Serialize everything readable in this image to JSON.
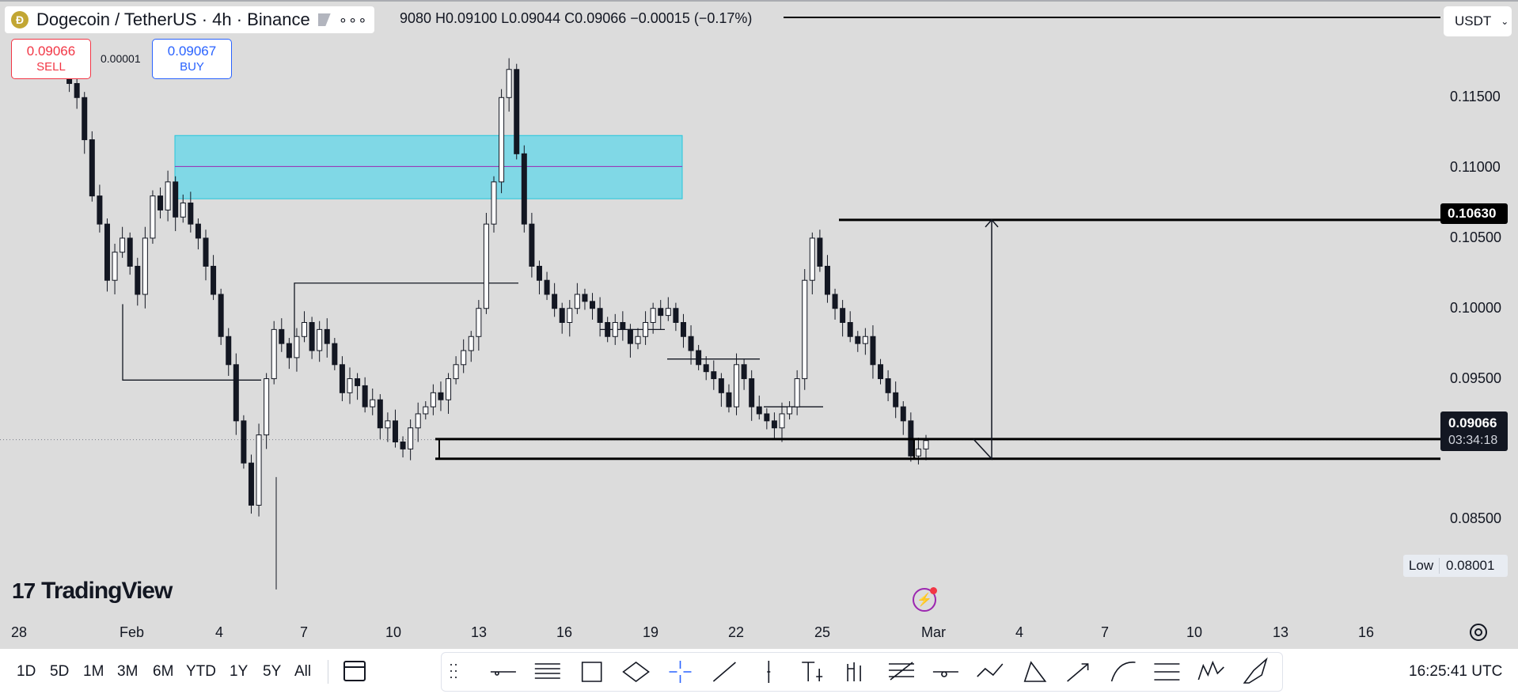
{
  "header": {
    "title": "Dogecoin / TetherUS · 4h · Binance",
    "coin_icon": "dogecoin-icon",
    "ohlc_text": "9080  H0.09100  L0.09044  C0.09066  −0.00015 (−0.17%)",
    "more_icon": "more-dots-icon"
  },
  "trade": {
    "sell_price": "0.09066",
    "sell_label": "SELL",
    "buy_price": "0.09067",
    "buy_label": "BUY",
    "spread": "0.00001"
  },
  "currency": {
    "label": "USDT",
    "icon": "chevron-down-icon"
  },
  "price_axis": {
    "ticks": [
      "0.11500",
      "0.11000",
      "0.10500",
      "0.10000",
      "0.09500",
      "0.08500"
    ],
    "target_label": "0.10630",
    "last_price": "0.09066",
    "countdown": "03:34:18",
    "low_label": "Low",
    "low_value": "0.08001"
  },
  "time_axis": {
    "ticks": [
      "28",
      "Feb",
      "4",
      "7",
      "10",
      "13",
      "16",
      "19",
      "22",
      "25",
      "Mar",
      "4",
      "7",
      "10",
      "13",
      "16"
    ]
  },
  "branding": {
    "logo_mark": "17",
    "logo_text": "TradingView"
  },
  "bottom_bar": {
    "ranges": [
      "1D",
      "5D",
      "1M",
      "3M",
      "6M",
      "YTD",
      "1Y",
      "5Y",
      "All"
    ],
    "date_range_icon": "calendar-icon",
    "drawing_tools": [
      "drag-handle-icon",
      "horizontal-ray-icon",
      "horizontal-lines-icon",
      "rectangle-icon",
      "ellipse-icon",
      "crosshair-icon",
      "trend-line-icon",
      "vertical-line-icon",
      "text-anchor-icon",
      "price-range-icon",
      "fib-retracement-icon",
      "horizontal-ray-dot-icon",
      "path-icon",
      "triangle-icon",
      "arrow-marker-icon",
      "curve-icon",
      "parallel-channel-icon",
      "elliott-wave-icon",
      "brush-icon"
    ],
    "clock": "16:25:41 UTC"
  },
  "colors": {
    "background": "#dcdcdc",
    "zone_fill": "#80d8e6",
    "zone_stroke": "#26c6da",
    "zone_midline": "#9c27b0",
    "sell": "#f23645",
    "buy": "#2962ff",
    "candle": "#131722"
  },
  "chart_data": {
    "type": "candlestick",
    "symbol": "Dogecoin / TetherUS",
    "interval": "4h",
    "exchange": "Binance",
    "ylim": [
      0.08,
      0.118
    ],
    "x_ticks": [
      "28",
      "Feb",
      "4",
      "7",
      "10",
      "13",
      "16",
      "19",
      "22",
      "25",
      "Mar",
      "4",
      "7",
      "10",
      "13",
      "16"
    ],
    "last_price": 0.09066,
    "low": 0.08001,
    "horizontal_levels": [
      0.1063,
      0.0907,
      0.0893
    ],
    "supply_zone": {
      "low": 0.1078,
      "high": 0.1123,
      "mid": 0.1101
    },
    "close_path": [
      0.117,
      0.116,
      0.115,
      0.112,
      0.108,
      0.106,
      0.102,
      0.104,
      0.105,
      0.103,
      0.101,
      0.105,
      0.108,
      0.107,
      0.109,
      0.1065,
      0.1075,
      0.106,
      0.105,
      0.103,
      0.101,
      0.098,
      0.096,
      0.092,
      0.089,
      0.086,
      0.091,
      0.095,
      0.0985,
      0.0975,
      0.0965,
      0.098,
      0.099,
      0.097,
      0.0985,
      0.0975,
      0.096,
      0.094,
      0.095,
      0.0945,
      0.093,
      0.0935,
      0.0915,
      0.092,
      0.0905,
      0.09,
      0.0915,
      0.0925,
      0.093,
      0.094,
      0.0935,
      0.095,
      0.096,
      0.097,
      0.098,
      0.1,
      0.106,
      0.109,
      0.115,
      0.117,
      0.111,
      0.106,
      0.103,
      0.102,
      0.101,
      0.1,
      0.099,
      0.1,
      0.101,
      0.1005,
      0.1,
      0.099,
      0.098,
      0.099,
      0.0985,
      0.0975,
      0.098,
      0.099,
      0.1,
      0.0995,
      0.1,
      0.099,
      0.098,
      0.097,
      0.096,
      0.0955,
      0.095,
      0.094,
      0.093,
      0.096,
      0.095,
      0.093,
      0.0925,
      0.092,
      0.0915,
      0.0925,
      0.093,
      0.095,
      0.102,
      0.105,
      0.103,
      0.101,
      0.1,
      0.099,
      0.098,
      0.0975,
      0.098,
      0.096,
      0.095,
      0.094,
      0.093,
      0.092,
      0.0895,
      0.09,
      0.0906
    ]
  }
}
